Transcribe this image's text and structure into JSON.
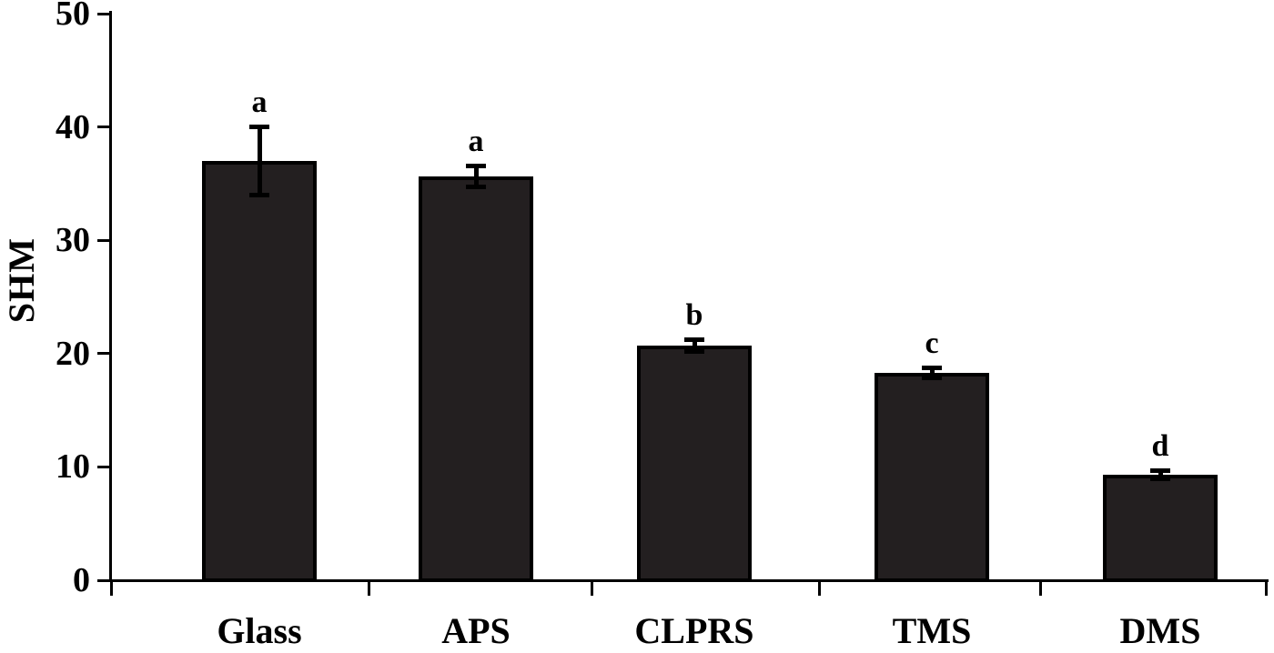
{
  "chart_data": {
    "type": "bar",
    "title": "",
    "ylabel": "SHM",
    "xlabel": "",
    "ylim": [
      0,
      50
    ],
    "ytick_interval": 10,
    "ytick_labels": [
      "0",
      "10",
      "20",
      "30",
      "40",
      "50"
    ],
    "categories": [
      "Glass",
      "APS",
      "CLPRS",
      "TMS",
      "DMS"
    ],
    "values": [
      37.0,
      35.6,
      20.7,
      18.3,
      9.3
    ],
    "error_bars": [
      2.9,
      0.8,
      0.4,
      0.35,
      0.25
    ],
    "significance_letters": [
      "a",
      "a",
      "b",
      "c",
      "d"
    ],
    "bar_fill_color": "#231f20",
    "bar_border_color": "#000000",
    "axis_color": "#000000",
    "background_color": "#ffffff",
    "grid": false,
    "legend_position": "none"
  }
}
